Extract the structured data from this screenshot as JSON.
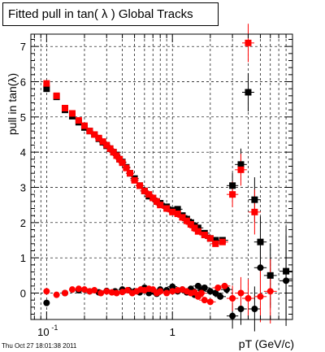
{
  "chart_data": {
    "type": "scatter",
    "title": "Fitted pull in tan( λ )  Global Tracks",
    "xlabel": "pT (GeV/c)",
    "ylabel": "pull in tan(λ)",
    "xscale": "log",
    "xlim": [
      0.075,
      9.0
    ],
    "ylim": [
      -0.75,
      7.35
    ],
    "grid": true,
    "x_tick_labels": [
      {
        "value": 0.1,
        "label": "10",
        "exp": "-1"
      },
      {
        "value": 1,
        "label": "1",
        "exp": ""
      }
    ],
    "y_ticks": [
      0,
      1,
      2,
      3,
      4,
      5,
      6,
      7
    ],
    "timestamp": "Thu Oct 27 18:01:38 2011",
    "series": [
      {
        "color": "#000000",
        "marker": "square",
        "x": [
          0.1,
          0.12,
          0.14,
          0.16,
          0.18,
          0.2,
          0.22,
          0.24,
          0.26,
          0.28,
          0.3,
          0.32,
          0.34,
          0.36,
          0.38,
          0.4,
          0.43,
          0.46,
          0.5,
          0.55,
          0.6,
          0.65,
          0.7,
          0.75,
          0.8,
          0.9,
          1.0,
          1.1,
          1.2,
          1.3,
          1.4,
          1.5,
          1.6,
          1.8,
          2.0,
          2.2,
          2.5,
          3.0,
          3.5,
          4.0,
          4.5,
          5.0,
          6.0,
          8.0
        ],
        "y": [
          5.8,
          5.57,
          5.2,
          5.02,
          4.85,
          4.7,
          4.6,
          4.5,
          4.38,
          4.28,
          4.18,
          4.1,
          4.0,
          3.92,
          3.8,
          3.72,
          3.57,
          3.4,
          3.25,
          3.05,
          2.9,
          2.75,
          2.7,
          2.6,
          2.55,
          2.45,
          2.35,
          2.38,
          2.2,
          2.1,
          2.0,
          1.9,
          1.85,
          1.7,
          1.55,
          1.5,
          1.5,
          3.05,
          3.65,
          5.7,
          2.65,
          1.45,
          0.5,
          0.62
        ]
      },
      {
        "color": "#ff0000",
        "marker": "square",
        "x": [
          0.1,
          0.12,
          0.14,
          0.16,
          0.18,
          0.2,
          0.22,
          0.24,
          0.26,
          0.28,
          0.3,
          0.32,
          0.34,
          0.36,
          0.38,
          0.4,
          0.43,
          0.46,
          0.5,
          0.55,
          0.6,
          0.65,
          0.7,
          0.75,
          0.8,
          0.9,
          1.0,
          1.1,
          1.2,
          1.3,
          1.4,
          1.5,
          1.6,
          1.8,
          2.0,
          2.2,
          2.5,
          3.0,
          3.5,
          4.0,
          4.5
        ],
        "y": [
          5.95,
          5.6,
          5.25,
          5.1,
          4.9,
          4.75,
          4.6,
          4.5,
          4.4,
          4.3,
          4.2,
          4.1,
          4.0,
          3.9,
          3.8,
          3.7,
          3.55,
          3.4,
          3.2,
          3.05,
          2.9,
          2.8,
          2.7,
          2.6,
          2.5,
          2.4,
          2.3,
          2.25,
          2.15,
          2.05,
          1.95,
          1.85,
          1.75,
          1.65,
          1.55,
          1.4,
          1.45,
          2.8,
          3.5,
          7.1,
          2.3
        ]
      },
      {
        "color": "#000000",
        "marker": "circle",
        "x": [
          0.1,
          0.14,
          0.18,
          0.22,
          0.26,
          0.3,
          0.35,
          0.4,
          0.45,
          0.5,
          0.55,
          0.6,
          0.65,
          0.7,
          0.75,
          0.8,
          0.9,
          1.0,
          1.1,
          1.2,
          1.3,
          1.4,
          1.5,
          1.6,
          1.7,
          1.8,
          2.0,
          2.2,
          2.4,
          2.7,
          3.0,
          3.5,
          4.5,
          5.0,
          8.0
        ],
        "y": [
          -0.28,
          0.0,
          0.08,
          0.05,
          0.02,
          0.06,
          0.05,
          0.1,
          0.08,
          0.05,
          0.02,
          0.15,
          0.0,
          0.05,
          -0.02,
          0.1,
          0.08,
          0.18,
          0.05,
          0.1,
          0.02,
          0.12,
          -0.05,
          0.2,
          0.08,
          0.15,
          0.05,
          0.0,
          -0.1,
          0.1,
          -0.65,
          -0.45,
          -0.45,
          0.72,
          0.35
        ]
      },
      {
        "color": "#ff0000",
        "marker": "circle",
        "x": [
          0.1,
          0.12,
          0.14,
          0.16,
          0.18,
          0.2,
          0.22,
          0.24,
          0.27,
          0.3,
          0.33,
          0.36,
          0.4,
          0.44,
          0.48,
          0.52,
          0.56,
          0.6,
          0.65,
          0.7,
          0.75,
          0.8,
          0.9,
          1.0,
          1.1,
          1.2,
          1.3,
          1.4,
          1.5,
          1.6,
          1.7,
          1.8,
          2.0,
          2.3,
          2.6,
          3.0,
          3.5,
          4.0,
          5.0,
          6.0
        ],
        "y": [
          0.05,
          -0.05,
          0.0,
          0.1,
          0.12,
          0.1,
          0.05,
          0.08,
          0.0,
          0.05,
          0.02,
          0.0,
          0.03,
          0.08,
          0.0,
          0.05,
          0.1,
          0.08,
          0.12,
          0.1,
          0.0,
          0.05,
          0.0,
          0.05,
          0.08,
          0.1,
          0.05,
          0.0,
          0.02,
          -0.1,
          0.0,
          -0.2,
          -0.25,
          0.15,
          0.2,
          -0.15,
          0.0,
          -0.15,
          -0.1,
          0.05
        ]
      }
    ]
  }
}
